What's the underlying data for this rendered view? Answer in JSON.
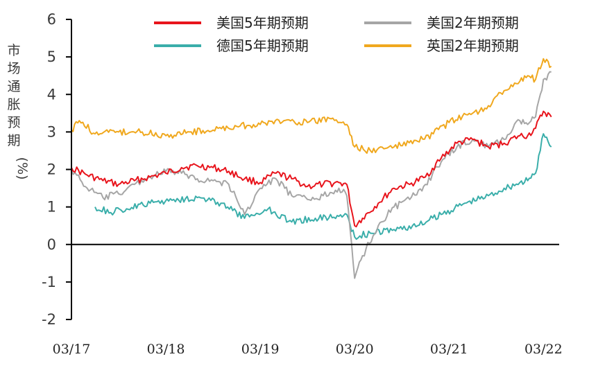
{
  "chart_data": {
    "type": "line",
    "ylabel": "市场通胀预期(%)",
    "ylim": [
      -2,
      6
    ],
    "yticks": [
      "6",
      "5",
      "4",
      "3",
      "2",
      "1",
      "0",
      "-1",
      "-2"
    ],
    "xlim": [
      "2017-03",
      "2022-05"
    ],
    "xtick_labels": [
      "03/17",
      "03/18",
      "03/19",
      "03/20",
      "03/21",
      "03/22"
    ],
    "legend_position": "top",
    "grid": false,
    "series": [
      {
        "name": "美国5年期预期",
        "color": "#e8141c",
        "points": [
          [
            "2017-03",
            2.05
          ],
          [
            "2017-05",
            1.85
          ],
          [
            "2017-07",
            1.7
          ],
          [
            "2017-09",
            1.6
          ],
          [
            "2017-11",
            1.7
          ],
          [
            "2018-01",
            1.8
          ],
          [
            "2018-03",
            1.9
          ],
          [
            "2018-05",
            2.05
          ],
          [
            "2018-07",
            2.1
          ],
          [
            "2018-09",
            2.05
          ],
          [
            "2018-11",
            1.95
          ],
          [
            "2019-01",
            1.75
          ],
          [
            "2019-03",
            1.65
          ],
          [
            "2019-05",
            1.9
          ],
          [
            "2019-07",
            1.75
          ],
          [
            "2019-09",
            1.55
          ],
          [
            "2019-11",
            1.6
          ],
          [
            "2020-01",
            1.65
          ],
          [
            "2020-02",
            1.6
          ],
          [
            "2020-03",
            0.5
          ],
          [
            "2020-04",
            0.7
          ],
          [
            "2020-06",
            1.1
          ],
          [
            "2020-08",
            1.5
          ],
          [
            "2020-10",
            1.6
          ],
          [
            "2020-12",
            1.8
          ],
          [
            "2021-02",
            2.3
          ],
          [
            "2021-04",
            2.7
          ],
          [
            "2021-06",
            2.8
          ],
          [
            "2021-08",
            2.6
          ],
          [
            "2021-10",
            2.7
          ],
          [
            "2021-12",
            2.9
          ],
          [
            "2022-01",
            2.9
          ],
          [
            "2022-02",
            3.1
          ],
          [
            "2022-03",
            3.55
          ],
          [
            "2022-04",
            3.4
          ]
        ]
      },
      {
        "name": "美国2年期预期",
        "color": "#a6a6a6",
        "points": [
          [
            "2017-03",
            2.0
          ],
          [
            "2017-05",
            1.5
          ],
          [
            "2017-07",
            1.25
          ],
          [
            "2017-09",
            1.35
          ],
          [
            "2017-11",
            1.6
          ],
          [
            "2018-01",
            1.8
          ],
          [
            "2018-03",
            1.95
          ],
          [
            "2018-05",
            1.9
          ],
          [
            "2018-07",
            1.75
          ],
          [
            "2018-09",
            1.7
          ],
          [
            "2018-11",
            1.6
          ],
          [
            "2019-01",
            0.8
          ],
          [
            "2019-03",
            1.5
          ],
          [
            "2019-05",
            1.75
          ],
          [
            "2019-07",
            1.3
          ],
          [
            "2019-09",
            1.2
          ],
          [
            "2019-11",
            1.3
          ],
          [
            "2020-01",
            1.5
          ],
          [
            "2020-02",
            1.3
          ],
          [
            "2020-03",
            -0.9
          ],
          [
            "2020-04",
            -0.3
          ],
          [
            "2020-06",
            0.5
          ],
          [
            "2020-08",
            1.0
          ],
          [
            "2020-10",
            1.2
          ],
          [
            "2020-12",
            1.6
          ],
          [
            "2021-02",
            2.2
          ],
          [
            "2021-04",
            2.6
          ],
          [
            "2021-06",
            2.8
          ],
          [
            "2021-08",
            2.6
          ],
          [
            "2021-10",
            2.8
          ],
          [
            "2021-12",
            3.3
          ],
          [
            "2022-01",
            3.2
          ],
          [
            "2022-02",
            3.4
          ],
          [
            "2022-03",
            4.4
          ],
          [
            "2022-04",
            4.6
          ]
        ]
      },
      {
        "name": "德国5年期预期",
        "color": "#3aaeaa",
        "points": [
          [
            "2017-06",
            1.0
          ],
          [
            "2017-08",
            0.85
          ],
          [
            "2017-10",
            0.95
          ],
          [
            "2018-01",
            1.1
          ],
          [
            "2018-04",
            1.2
          ],
          [
            "2018-07",
            1.25
          ],
          [
            "2018-10",
            1.1
          ],
          [
            "2019-01",
            0.7
          ],
          [
            "2019-04",
            0.95
          ],
          [
            "2019-07",
            0.6
          ],
          [
            "2019-10",
            0.7
          ],
          [
            "2020-01",
            0.75
          ],
          [
            "2020-02",
            0.8
          ],
          [
            "2020-03",
            0.2
          ],
          [
            "2020-05",
            0.3
          ],
          [
            "2020-08",
            0.4
          ],
          [
            "2020-11",
            0.5
          ],
          [
            "2021-02",
            0.8
          ],
          [
            "2021-05",
            1.1
          ],
          [
            "2021-08",
            1.3
          ],
          [
            "2021-10",
            1.5
          ],
          [
            "2021-12",
            1.65
          ],
          [
            "2022-01",
            1.7
          ],
          [
            "2022-02",
            1.9
          ],
          [
            "2022-03",
            2.95
          ],
          [
            "2022-04",
            2.6
          ]
        ]
      },
      {
        "name": "英国2年期预期",
        "color": "#f0a81e",
        "points": [
          [
            "2017-03",
            3.05
          ],
          [
            "2017-04",
            3.3
          ],
          [
            "2017-06",
            2.95
          ],
          [
            "2017-09",
            3.0
          ],
          [
            "2017-12",
            3.0
          ],
          [
            "2018-03",
            2.9
          ],
          [
            "2018-06",
            3.0
          ],
          [
            "2018-09",
            3.05
          ],
          [
            "2018-12",
            3.15
          ],
          [
            "2019-03",
            3.2
          ],
          [
            "2019-06",
            3.3
          ],
          [
            "2019-09",
            3.25
          ],
          [
            "2019-12",
            3.35
          ],
          [
            "2020-02",
            3.2
          ],
          [
            "2020-03",
            2.6
          ],
          [
            "2020-05",
            2.5
          ],
          [
            "2020-08",
            2.6
          ],
          [
            "2020-11",
            2.75
          ],
          [
            "2021-01",
            2.95
          ],
          [
            "2021-03",
            3.25
          ],
          [
            "2021-06",
            3.5
          ],
          [
            "2021-08",
            3.7
          ],
          [
            "2021-10",
            4.1
          ],
          [
            "2021-12",
            4.35
          ],
          [
            "2022-01",
            4.5
          ],
          [
            "2022-02",
            4.4
          ],
          [
            "2022-03",
            4.95
          ],
          [
            "2022-04",
            4.75
          ]
        ]
      }
    ]
  }
}
